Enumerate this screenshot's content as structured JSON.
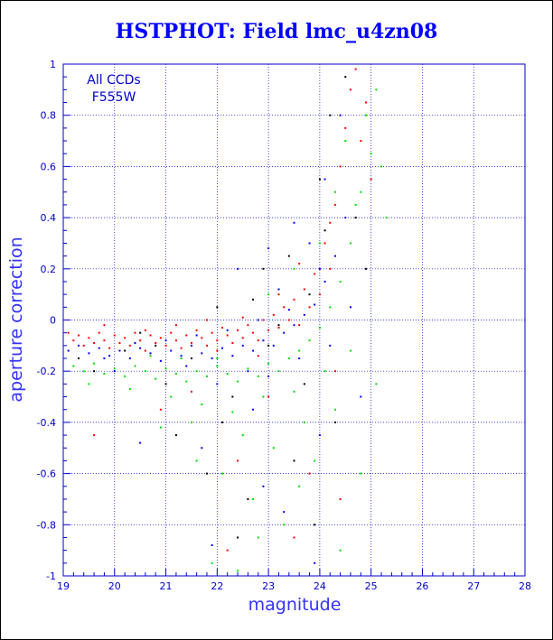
{
  "chart_data": {
    "type": "scatter",
    "title": "HSTPHOT: Field lmc_u4zn08",
    "xlabel": "magnitude",
    "ylabel": "aperture correction",
    "xlim": [
      19,
      28
    ],
    "ylim": [
      -1,
      1
    ],
    "x_ticks": [
      "19",
      "20",
      "21",
      "22",
      "23",
      "24",
      "25",
      "26",
      "27",
      "28"
    ],
    "y_ticks": [
      "-1",
      "-0.8",
      "-0.6",
      "-0.4",
      "-0.2",
      "0",
      "0.2",
      "0.4",
      "0.6",
      "0.8",
      "1"
    ],
    "x_tick_values": [
      19,
      20,
      21,
      22,
      23,
      24,
      25,
      26,
      27,
      28
    ],
    "y_tick_values": [
      -1,
      -0.8,
      -0.6,
      -0.4,
      -0.2,
      0,
      0.2,
      0.4,
      0.6,
      0.8,
      1
    ],
    "grid": true,
    "annotation": [
      "All CCDs",
      "F555W"
    ],
    "series": [
      {
        "color": "#ff0000",
        "points": [
          [
            19.1,
            -0.05
          ],
          [
            19.2,
            -0.08
          ],
          [
            19.3,
            -0.06
          ],
          [
            19.4,
            -0.1
          ],
          [
            19.5,
            -0.07
          ],
          [
            19.6,
            -0.09
          ],
          [
            19.7,
            -0.05
          ],
          [
            19.8,
            -0.08
          ],
          [
            19.9,
            -0.11
          ],
          [
            20.0,
            -0.06
          ],
          [
            20.1,
            -0.09
          ],
          [
            20.2,
            -0.07
          ],
          [
            20.3,
            -0.1
          ],
          [
            20.4,
            -0.05
          ],
          [
            20.5,
            -0.08
          ],
          [
            20.6,
            -0.12
          ],
          [
            20.7,
            -0.06
          ],
          [
            20.8,
            -0.09
          ],
          [
            20.9,
            -0.07
          ],
          [
            21.0,
            -0.1
          ],
          [
            21.1,
            -0.05
          ],
          [
            21.2,
            -0.08
          ],
          [
            21.3,
            -0.11
          ],
          [
            21.4,
            -0.06
          ],
          [
            21.5,
            -0.09
          ],
          [
            21.6,
            -0.04
          ],
          [
            21.7,
            -0.07
          ],
          [
            21.8,
            -0.1
          ],
          [
            21.9,
            -0.05
          ],
          [
            22.0,
            -0.08
          ],
          [
            22.1,
            -0.03
          ],
          [
            22.2,
            -0.06
          ],
          [
            22.3,
            -0.09
          ],
          [
            22.4,
            -0.04
          ],
          [
            22.5,
            -0.07
          ],
          [
            22.6,
            -0.02
          ],
          [
            22.7,
            -0.05
          ],
          [
            22.8,
            -0.08
          ],
          [
            22.9,
            0.0
          ],
          [
            23.0,
            -0.04
          ],
          [
            23.1,
            0.02
          ],
          [
            23.2,
            -0.03
          ],
          [
            23.3,
            0.05
          ],
          [
            23.4,
            0.0
          ],
          [
            23.5,
            0.08
          ],
          [
            23.6,
            -0.02
          ],
          [
            23.7,
            0.12
          ],
          [
            23.8,
            0.05
          ],
          [
            23.9,
            0.18
          ],
          [
            24.0,
            0.1
          ],
          [
            24.1,
            0.3
          ],
          [
            24.2,
            0.2
          ],
          [
            24.3,
            0.45
          ],
          [
            24.4,
            0.6
          ],
          [
            24.5,
            0.75
          ],
          [
            24.6,
            0.9
          ],
          [
            24.7,
            0.98
          ],
          [
            24.8,
            0.7
          ],
          [
            25.0,
            0.55
          ],
          [
            24.9,
            0.85
          ],
          [
            21.2,
            -0.02
          ],
          [
            21.8,
            0.0
          ],
          [
            22.5,
            0.01
          ],
          [
            23.2,
            0.1
          ],
          [
            23.6,
            0.22
          ],
          [
            24.2,
            0.38
          ],
          [
            19.8,
            -0.02
          ],
          [
            20.6,
            -0.04
          ],
          [
            22.0,
            -0.12
          ],
          [
            22.8,
            -0.14
          ],
          [
            19.6,
            -0.45
          ],
          [
            22.4,
            -0.55
          ],
          [
            23.0,
            -0.3
          ],
          [
            23.8,
            -0.6
          ],
          [
            24.3,
            -0.2
          ],
          [
            21.5,
            -0.28
          ],
          [
            20.9,
            -0.35
          ],
          [
            23.5,
            -0.85
          ],
          [
            24.4,
            -0.7
          ],
          [
            22.2,
            -0.9
          ]
        ]
      },
      {
        "color": "#0000ff",
        "points": [
          [
            19.1,
            -0.12
          ],
          [
            19.3,
            -0.1
          ],
          [
            19.5,
            -0.13
          ],
          [
            19.7,
            -0.11
          ],
          [
            19.9,
            -0.14
          ],
          [
            20.1,
            -0.12
          ],
          [
            20.3,
            -0.15
          ],
          [
            20.5,
            -0.11
          ],
          [
            20.7,
            -0.13
          ],
          [
            20.9,
            -0.16
          ],
          [
            21.1,
            -0.12
          ],
          [
            21.3,
            -0.14
          ],
          [
            21.5,
            -0.1
          ],
          [
            21.7,
            -0.13
          ],
          [
            21.9,
            -0.15
          ],
          [
            22.1,
            -0.11
          ],
          [
            22.3,
            -0.14
          ],
          [
            22.5,
            -0.1
          ],
          [
            22.7,
            -0.12
          ],
          [
            22.9,
            -0.08
          ],
          [
            23.1,
            -0.1
          ],
          [
            23.3,
            -0.05
          ],
          [
            23.5,
            -0.02
          ],
          [
            23.7,
            0.02
          ],
          [
            23.9,
            0.06
          ],
          [
            24.1,
            0.15
          ],
          [
            24.3,
            0.25
          ],
          [
            24.5,
            0.4
          ],
          [
            23.2,
            0.12
          ],
          [
            23.8,
            0.3
          ],
          [
            21.0,
            -0.08
          ],
          [
            21.6,
            -0.06
          ],
          [
            22.2,
            -0.04
          ],
          [
            22.8,
            0.0
          ],
          [
            23.4,
            0.04
          ],
          [
            24.0,
            0.2
          ],
          [
            20.4,
            -0.09
          ],
          [
            19.8,
            -0.15
          ],
          [
            22.6,
            -0.2
          ],
          [
            23.0,
            -0.22
          ],
          [
            22.0,
            -0.25
          ],
          [
            21.4,
            -0.18
          ],
          [
            23.6,
            -0.15
          ],
          [
            24.2,
            -0.1
          ],
          [
            24.0,
            -0.45
          ],
          [
            22.9,
            -0.65
          ],
          [
            21.7,
            -0.5
          ],
          [
            20.5,
            -0.48
          ],
          [
            23.3,
            -0.75
          ],
          [
            24.6,
            0.05
          ],
          [
            22.4,
            0.2
          ],
          [
            23.0,
            0.28
          ],
          [
            23.5,
            0.38
          ],
          [
            24.1,
            0.55
          ],
          [
            24.4,
            0.8
          ],
          [
            24.8,
            -0.3
          ],
          [
            21.9,
            -0.88
          ],
          [
            23.9,
            -0.95
          ],
          [
            20.0,
            -0.2
          ],
          [
            22.7,
            -0.35
          ]
        ]
      },
      {
        "color": "#00dd00",
        "points": [
          [
            19.2,
            -0.18
          ],
          [
            19.4,
            -0.2
          ],
          [
            19.6,
            -0.17
          ],
          [
            19.8,
            -0.21
          ],
          [
            20.0,
            -0.19
          ],
          [
            20.2,
            -0.22
          ],
          [
            20.4,
            -0.18
          ],
          [
            20.6,
            -0.2
          ],
          [
            20.8,
            -0.23
          ],
          [
            21.0,
            -0.19
          ],
          [
            21.2,
            -0.21
          ],
          [
            21.4,
            -0.24
          ],
          [
            21.6,
            -0.2
          ],
          [
            21.8,
            -0.22
          ],
          [
            22.0,
            -0.18
          ],
          [
            22.2,
            -0.21
          ],
          [
            22.4,
            -0.24
          ],
          [
            22.6,
            -0.19
          ],
          [
            22.8,
            -0.22
          ],
          [
            23.0,
            -0.17
          ],
          [
            23.2,
            -0.2
          ],
          [
            23.4,
            -0.15
          ],
          [
            23.6,
            -0.12
          ],
          [
            23.8,
            -0.08
          ],
          [
            24.0,
            -0.03
          ],
          [
            24.2,
            0.05
          ],
          [
            24.4,
            0.15
          ],
          [
            24.6,
            0.3
          ],
          [
            24.8,
            0.5
          ],
          [
            25.0,
            0.65
          ],
          [
            24.9,
            0.8
          ],
          [
            25.1,
            0.9
          ],
          [
            24.7,
            0.45
          ],
          [
            25.2,
            0.6
          ],
          [
            24.5,
            0.7
          ],
          [
            21.1,
            -0.3
          ],
          [
            21.7,
            -0.33
          ],
          [
            22.3,
            -0.36
          ],
          [
            22.9,
            -0.3
          ],
          [
            23.5,
            -0.28
          ],
          [
            20.3,
            -0.27
          ],
          [
            19.5,
            -0.25
          ],
          [
            21.5,
            -0.4
          ],
          [
            22.5,
            -0.45
          ],
          [
            23.1,
            -0.5
          ],
          [
            23.7,
            -0.4
          ],
          [
            24.3,
            -0.35
          ],
          [
            22.1,
            -0.6
          ],
          [
            22.7,
            -0.7
          ],
          [
            23.3,
            -0.8
          ],
          [
            21.9,
            -0.95
          ],
          [
            23.9,
            -0.55
          ],
          [
            24.1,
            -0.2
          ],
          [
            22.0,
            -0.15
          ],
          [
            21.3,
            -0.15
          ],
          [
            20.7,
            -0.14
          ],
          [
            23.0,
            0.1
          ],
          [
            23.5,
            0.2
          ],
          [
            24.0,
            0.3
          ],
          [
            24.3,
            0.5
          ],
          [
            25.3,
            0.4
          ],
          [
            24.6,
            -0.12
          ],
          [
            25.1,
            -0.25
          ],
          [
            24.8,
            -0.6
          ],
          [
            22.4,
            -0.98
          ],
          [
            21.6,
            -0.55
          ],
          [
            20.9,
            -0.42
          ],
          [
            23.6,
            -0.65
          ],
          [
            24.4,
            -0.9
          ],
          [
            22.8,
            -0.85
          ]
        ]
      },
      {
        "color": "#000000",
        "points": [
          [
            19.6,
            -0.2
          ],
          [
            20.8,
            -0.1
          ],
          [
            21.5,
            -0.15
          ],
          [
            22.3,
            -0.3
          ],
          [
            23.0,
            -0.1
          ],
          [
            23.4,
            0.25
          ],
          [
            23.8,
            0.1
          ],
          [
            24.0,
            0.55
          ],
          [
            24.2,
            0.8
          ],
          [
            24.5,
            0.95
          ],
          [
            22.0,
            0.05
          ],
          [
            21.2,
            -0.45
          ],
          [
            22.6,
            -0.7
          ],
          [
            23.5,
            -0.55
          ],
          [
            24.3,
            -0.4
          ],
          [
            20.5,
            -0.05
          ],
          [
            22.9,
            0.2
          ],
          [
            23.7,
            -0.25
          ],
          [
            21.8,
            -0.6
          ],
          [
            22.4,
            -0.85
          ],
          [
            23.2,
            -0.02
          ],
          [
            24.1,
            0.35
          ],
          [
            20.2,
            -0.12
          ],
          [
            19.3,
            -0.15
          ],
          [
            22.7,
            0.08
          ],
          [
            24.7,
            0.4
          ],
          [
            21.0,
            -0.25
          ],
          [
            23.9,
            -0.8
          ],
          [
            22.1,
            -0.4
          ],
          [
            24.9,
            0.2
          ]
        ]
      }
    ]
  }
}
